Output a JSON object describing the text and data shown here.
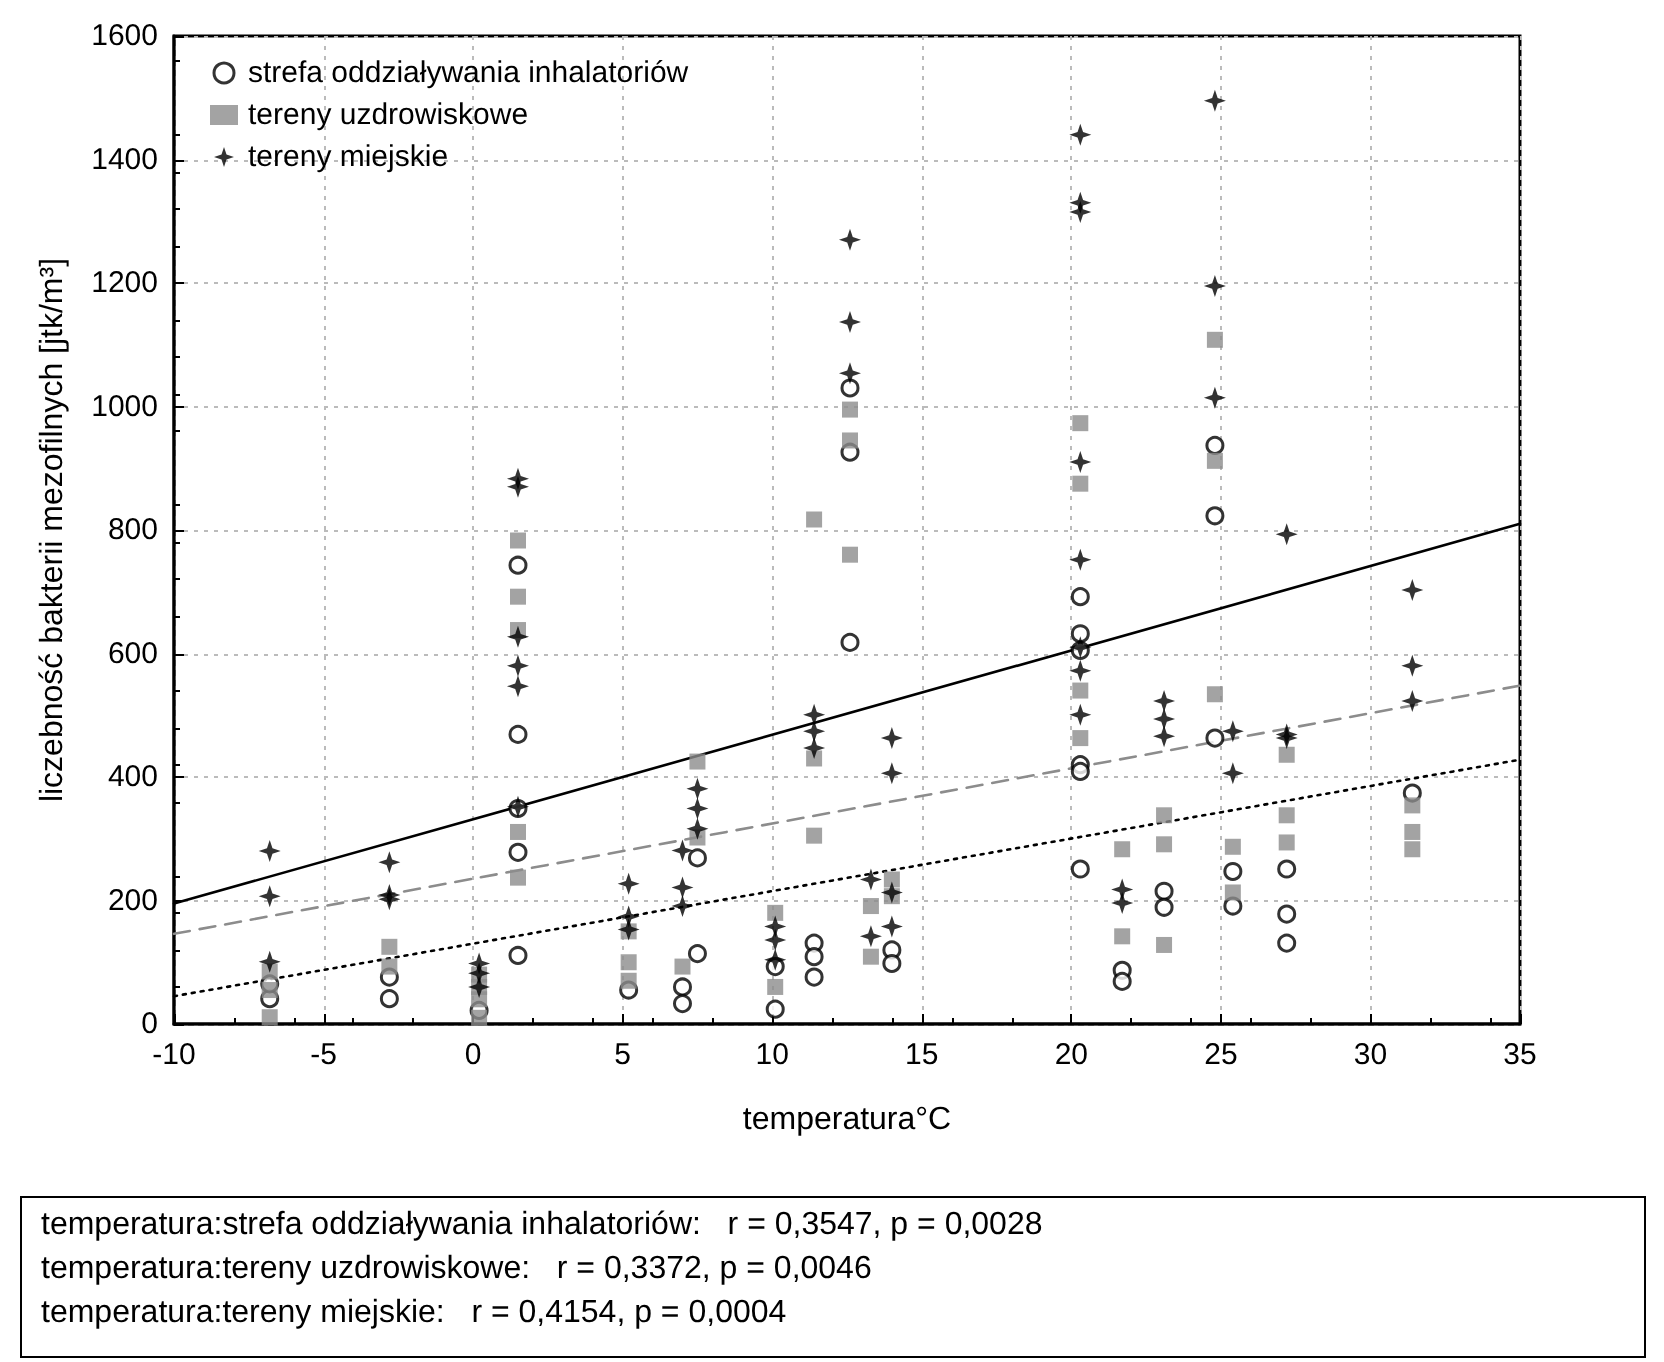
{
  "chart_data": {
    "type": "scatter",
    "xlabel": "temperatura°C",
    "ylabel": "liczebność bakterii mezofilnych [jtk/m³]",
    "xlim": [
      -10,
      35
    ],
    "xticks": [
      -10,
      -5,
      0,
      5,
      10,
      15,
      20,
      25,
      30,
      35
    ],
    "ylim": [
      0,
      1600
    ],
    "yticks": [
      0,
      200,
      400,
      600,
      800,
      1000,
      1200,
      1400,
      1600
    ],
    "grid": true,
    "legend": "top left",
    "annotations": [
      "temperatura:strefa oddziaływania inhalatoriów:   r = 0,3547, p = 0,0028",
      "temperatura:tereny uzdrowiskowe:   r = 0,3372, p = 0,0046",
      "temperatura:tereny miejskie:   r = 0,4154, p = 0,0004"
    ],
    "series": [
      {
        "name": "strefa oddziaływania inhalatoriów",
        "color": "#000000",
        "marker": "circle",
        "x": [
          -6.8,
          -6.8,
          -2.8,
          -2.8,
          0.2,
          1.5,
          1.5,
          1.5,
          1.5,
          1.5,
          5.2,
          7,
          7,
          7.5,
          7.5,
          10.1,
          10.1,
          11.4,
          11.4,
          11.4,
          12.6,
          12.6,
          12.6,
          14,
          14,
          20.3,
          20.3,
          20.3,
          20.3,
          20.3,
          20.3,
          21.7,
          21.7,
          23.1,
          23.1,
          24.8,
          24.8,
          24.8,
          25.4,
          25.4,
          27.2,
          27.2,
          27.2,
          31.4
        ],
        "values": [
          41,
          65,
          76,
          41,
          22,
          743,
          469,
          349,
          278,
          111,
          55,
          60,
          33,
          269,
          114,
          24,
          93,
          131,
          109,
          76,
          1030,
          926,
          618,
          120,
          98,
          692,
          632,
          605,
          420,
          409,
          251,
          87,
          69,
          215,
          189,
          937,
          823,
          463,
          247,
          191,
          251,
          178,
          131,
          374
        ]
      },
      {
        "name": "tereny uzdrowiskowe",
        "color": "#8c8c8c",
        "marker": "square",
        "x": [
          -6.8,
          -6.8,
          -6.8,
          -2.8,
          -2.8,
          0.2,
          0.2,
          0.2,
          0.2,
          1.5,
          1.5,
          1.5,
          1.5,
          1.5,
          5.2,
          5.2,
          5.2,
          7,
          7.5,
          7.5,
          10.1,
          10.1,
          11.4,
          11.4,
          11.4,
          12.6,
          12.6,
          12.6,
          13.3,
          13.3,
          14,
          14,
          20.3,
          20.3,
          20.3,
          20.3,
          21.7,
          21.7,
          23.1,
          23.1,
          23.1,
          24.8,
          24.8,
          24.8,
          25.4,
          25.4,
          27.2,
          27.2,
          27.2,
          31.4,
          31.4,
          31.4
        ],
        "values": [
          85,
          55,
          11,
          125,
          93,
          80,
          60,
          40,
          10,
          783,
          692,
          638,
          311,
          237,
          150,
          100,
          70,
          93,
          425,
          302,
          180,
          60,
          817,
          430,
          305,
          995,
          945,
          760,
          191,
          109,
          234,
          207,
          973,
          875,
          540,
          463,
          283,
          142,
          338,
          291,
          128,
          1108,
          912,
          534,
          287,
          213,
          436,
          338,
          294,
          354,
          311,
          283
        ]
      },
      {
        "name": "tereny miejskie",
        "color": "#000000",
        "marker": "star",
        "x": [
          -6.8,
          -6.8,
          -6.8,
          -2.8,
          -2.8,
          -2.8,
          0.2,
          0.2,
          0.2,
          1.5,
          1.5,
          1.5,
          1.5,
          1.5,
          1.5,
          5.2,
          5.2,
          5.2,
          7,
          7,
          7,
          7.5,
          7.5,
          7.5,
          10.1,
          10.1,
          10.1,
          11.4,
          11.4,
          11.4,
          12.6,
          12.6,
          12.6,
          13.3,
          13.3,
          14,
          14,
          14,
          14,
          20.3,
          20.3,
          20.3,
          20.3,
          20.3,
          20.3,
          20.3,
          20.3,
          21.7,
          21.7,
          23.1,
          23.1,
          23.1,
          24.8,
          24.8,
          24.8,
          25.4,
          25.4,
          27.2,
          27.2,
          27.2,
          31.4,
          31.4,
          31.4
        ],
        "values": [
          280,
          207,
          101,
          262,
          209,
          202,
          98,
          82,
          60,
          883,
          870,
          627,
          580,
          547,
          352,
          227,
          174,
          153,
          281,
          221,
          191,
          381,
          349,
          316,
          158,
          136,
          104,
          501,
          474,
          447,
          1270,
          1137,
          1054,
          234,
          142,
          463,
          406,
          213,
          158,
          1440,
          1330,
          1315,
          910,
          752,
          610,
          572,
          501,
          218,
          196,
          523,
          494,
          466,
          1495,
          1195,
          1014,
          474,
          406,
          793,
          469,
          463,
          703,
          580,
          523
        ]
      },
      {
        "type": "line",
        "color": "#000000",
        "marker": "none",
        "line_style": "dotted",
        "x": [
          -10,
          35
        ],
        "values": [
          45,
          428
        ]
      },
      {
        "type": "line",
        "color": "#8c8c8c",
        "marker": "none",
        "line_style": "dashed",
        "x": [
          -10,
          35
        ],
        "values": [
          146,
          548
        ]
      },
      {
        "type": "line",
        "color": "#000000",
        "marker": "none",
        "line_style": "solid",
        "x": [
          -10,
          35
        ],
        "values": [
          195,
          810
        ]
      }
    ]
  }
}
